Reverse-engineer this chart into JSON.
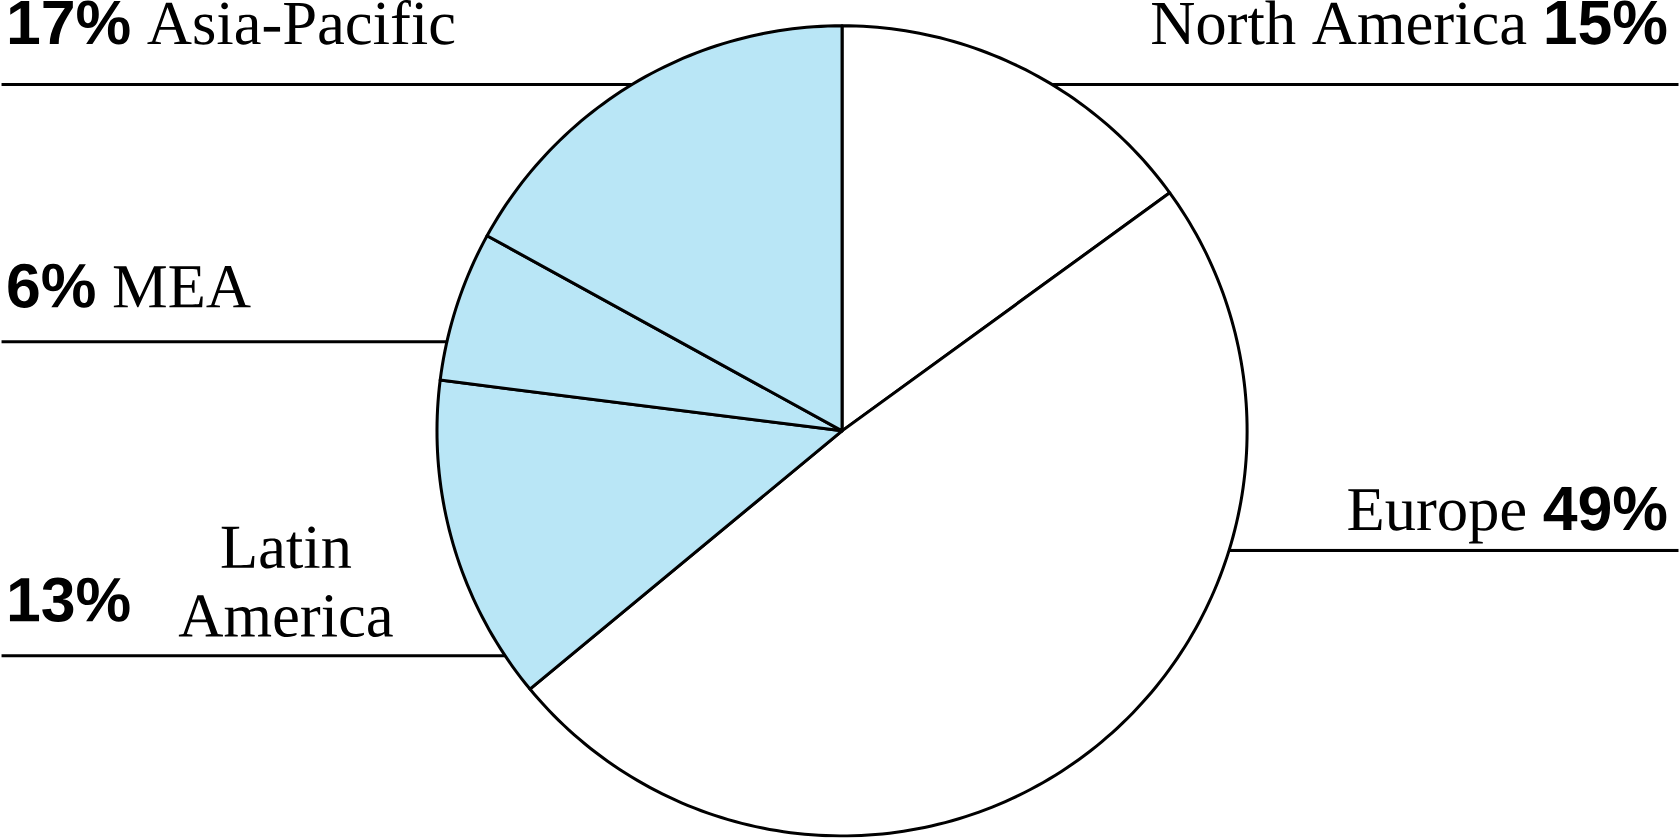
{
  "chart_data": {
    "type": "pie",
    "categories": [
      "North America",
      "Europe",
      "Latin America",
      "MEA",
      "Asia-Pacific"
    ],
    "values": [
      15,
      49,
      13,
      6,
      17
    ],
    "value_labels": [
      "15%",
      "49%",
      "13%",
      "6%",
      "17%"
    ],
    "colors": [
      "#ffffff",
      "#ffffff",
      "#b9e6f6",
      "#b9e6f6",
      "#b9e6f6"
    ]
  }
}
